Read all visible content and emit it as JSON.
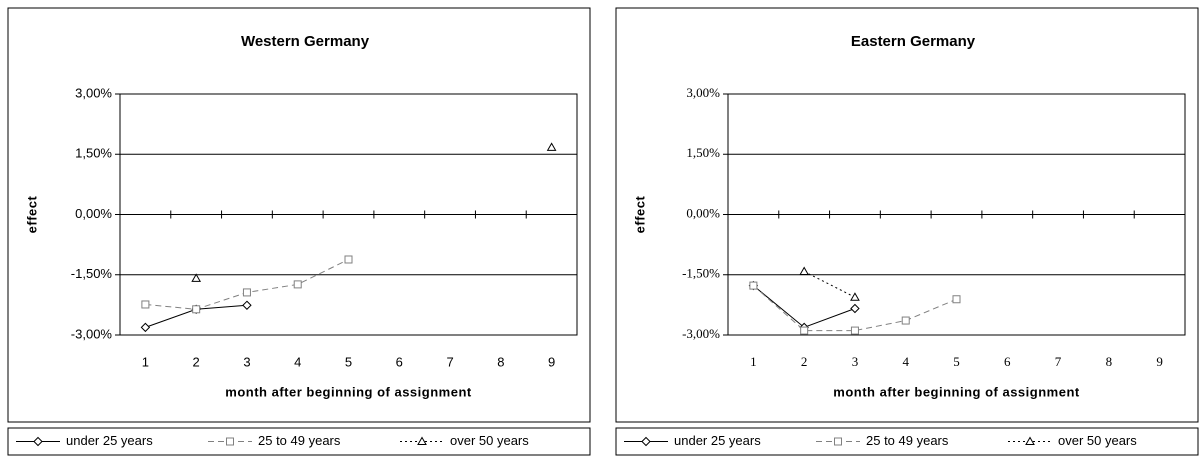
{
  "chart_data": [
    {
      "type": "line",
      "title": "Western Germany",
      "y_label": "effect",
      "x_label": "month after beginning of assignment",
      "categories": [
        "1",
        "2",
        "3",
        "4",
        "5",
        "6",
        "7",
        "8",
        "9"
      ],
      "ylim": [
        -3,
        3
      ],
      "yticks": [
        {
          "value": -3,
          "label": "-3,00%"
        },
        {
          "value": -1.5,
          "label": "-1,50%"
        },
        {
          "value": 0,
          "label": "0,00%"
        },
        {
          "value": 1.5,
          "label": "1,50%"
        },
        {
          "value": 3,
          "label": "3,00%"
        }
      ],
      "grid": true,
      "series": [
        {
          "name": "under 25 years",
          "color": "#000000",
          "dash": "solid",
          "marker": "diamond",
          "values": [
            -2.81,
            -2.36,
            -2.26,
            null,
            null,
            null,
            null,
            null,
            null
          ]
        },
        {
          "name": "25 to 49 years",
          "color": "#808080",
          "dash": "dashed",
          "marker": "square",
          "values": [
            -2.24,
            -2.36,
            -1.94,
            -1.74,
            -1.12,
            null,
            null,
            null,
            null
          ]
        },
        {
          "name": "over 50 years",
          "color": "#000000",
          "dash": "dotted",
          "marker": "triangle",
          "values": [
            null,
            -1.59,
            null,
            null,
            null,
            null,
            null,
            null,
            1.67
          ]
        }
      ]
    },
    {
      "type": "line",
      "title": "Eastern Germany",
      "y_label": "effect",
      "x_label": "month after beginning of assignment",
      "categories": [
        "1",
        "2",
        "3",
        "4",
        "5",
        "6",
        "7",
        "8",
        "9"
      ],
      "ylim": [
        -3,
        3
      ],
      "yticks": [
        {
          "value": -3,
          "label": "-3,00%"
        },
        {
          "value": -1.5,
          "label": "-1,50%"
        },
        {
          "value": 0,
          "label": "0,00%"
        },
        {
          "value": 1.5,
          "label": "1,50%"
        },
        {
          "value": 3,
          "label": "3,00%"
        }
      ],
      "grid": true,
      "series": [
        {
          "name": "under 25 years",
          "color": "#000000",
          "dash": "solid",
          "marker": "diamond",
          "values": [
            -1.77,
            -2.81,
            -2.34,
            null,
            null,
            null,
            null,
            null,
            null
          ]
        },
        {
          "name": "25 to 49 years",
          "color": "#808080",
          "dash": "dashed",
          "marker": "square",
          "values": [
            -1.77,
            -2.89,
            -2.89,
            -2.64,
            -2.11,
            null,
            null,
            null,
            null
          ]
        },
        {
          "name": "over 50 years",
          "color": "#000000",
          "dash": "dotted",
          "marker": "triangle",
          "values": [
            null,
            -1.42,
            -2.06,
            null,
            null,
            null,
            null,
            null,
            null
          ]
        }
      ]
    }
  ]
}
